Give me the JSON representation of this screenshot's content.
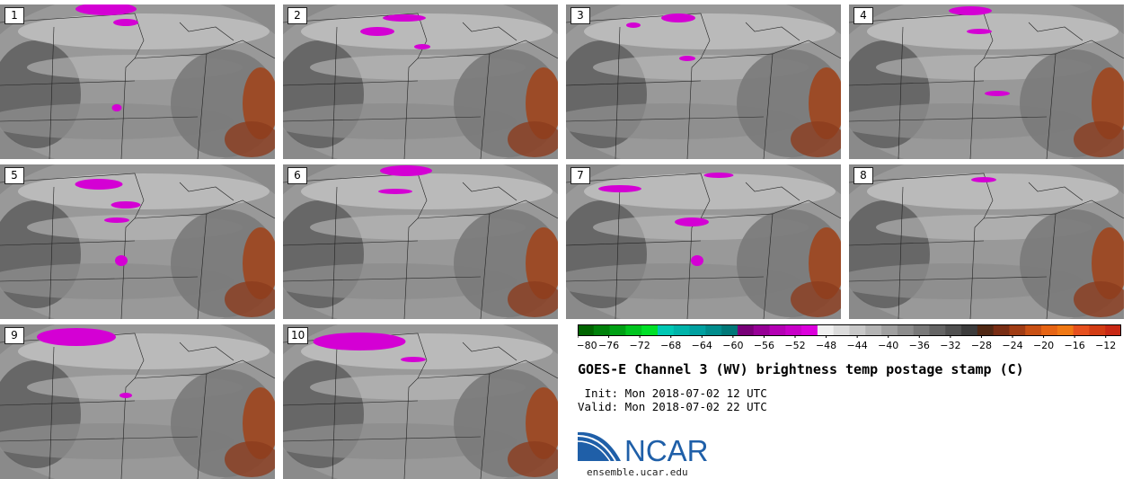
{
  "panels": [
    {
      "label": "1"
    },
    {
      "label": "2"
    },
    {
      "label": "3"
    },
    {
      "label": "4"
    },
    {
      "label": "5"
    },
    {
      "label": "6"
    },
    {
      "label": "7"
    },
    {
      "label": "8"
    },
    {
      "label": "9"
    },
    {
      "label": "10"
    }
  ],
  "colorbar": {
    "min": -80,
    "max": -10,
    "ticks": [
      "-80",
      "-76",
      "-72",
      "-68",
      "-64",
      "-60",
      "-56",
      "-52",
      "-48",
      "-44",
      "-40",
      "-36",
      "-32",
      "-28",
      "-24",
      "-20",
      "-16",
      "-12"
    ],
    "colors": [
      "#006400",
      "#00800a",
      "#00a014",
      "#00c41e",
      "#00e028",
      "#00c8b4",
      "#00b4aa",
      "#00a0a0",
      "#008c8c",
      "#007878",
      "#780078",
      "#960096",
      "#b400b4",
      "#c800c8",
      "#dc00dc",
      "#f0f0f0",
      "#dcdcdc",
      "#c8c8c8",
      "#b4b4b4",
      "#a0a0a0",
      "#8c8c8c",
      "#787878",
      "#646464",
      "#505050",
      "#3c3c3c",
      "#502814",
      "#782d14",
      "#a03c14",
      "#c85014",
      "#e66414",
      "#f07814",
      "#e6501e",
      "#d23c14",
      "#c82814"
    ]
  },
  "title": "GOES-E Channel 3 (WV) brightness temp postage stamp (C)",
  "init": " Init: Mon 2018-07-02 12 UTC",
  "valid": "Valid: Mon 2018-07-02 22 UTC",
  "logo": {
    "text": "NCAR",
    "url": "ensemble.ucar.edu"
  }
}
